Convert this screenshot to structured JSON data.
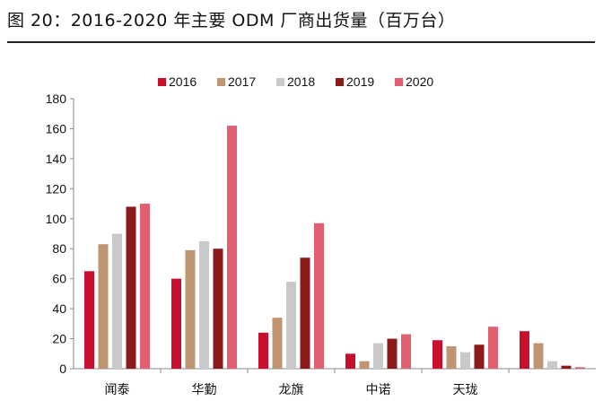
{
  "chart_data": {
    "type": "bar",
    "title": "图 20：2016-2020 年主要 ODM 厂商出货量（百万台）",
    "categories": [
      "闻泰",
      "华勤",
      "龙旗",
      "中诺",
      "天珑",
      ""
    ],
    "series": [
      {
        "name": "2016",
        "color": "#c8102e",
        "values": [
          65,
          60,
          24,
          10,
          19,
          25
        ]
      },
      {
        "name": "2017",
        "color": "#bf9470",
        "values": [
          83,
          79,
          34,
          5,
          15,
          17
        ]
      },
      {
        "name": "2018",
        "color": "#c9c9c9",
        "values": [
          90,
          85,
          58,
          17,
          11,
          5
        ]
      },
      {
        "name": "2019",
        "color": "#8b1a1a",
        "values": [
          108,
          80,
          74,
          20,
          16,
          2
        ]
      },
      {
        "name": "2020",
        "color": "#e06072",
        "values": [
          110,
          162,
          97,
          23,
          28,
          1
        ]
      }
    ],
    "yticks": [
      0,
      20,
      40,
      60,
      80,
      100,
      120,
      140,
      160,
      180
    ],
    "ylim": [
      0,
      180
    ],
    "legend_position": "top",
    "xlabel": "",
    "ylabel": ""
  }
}
